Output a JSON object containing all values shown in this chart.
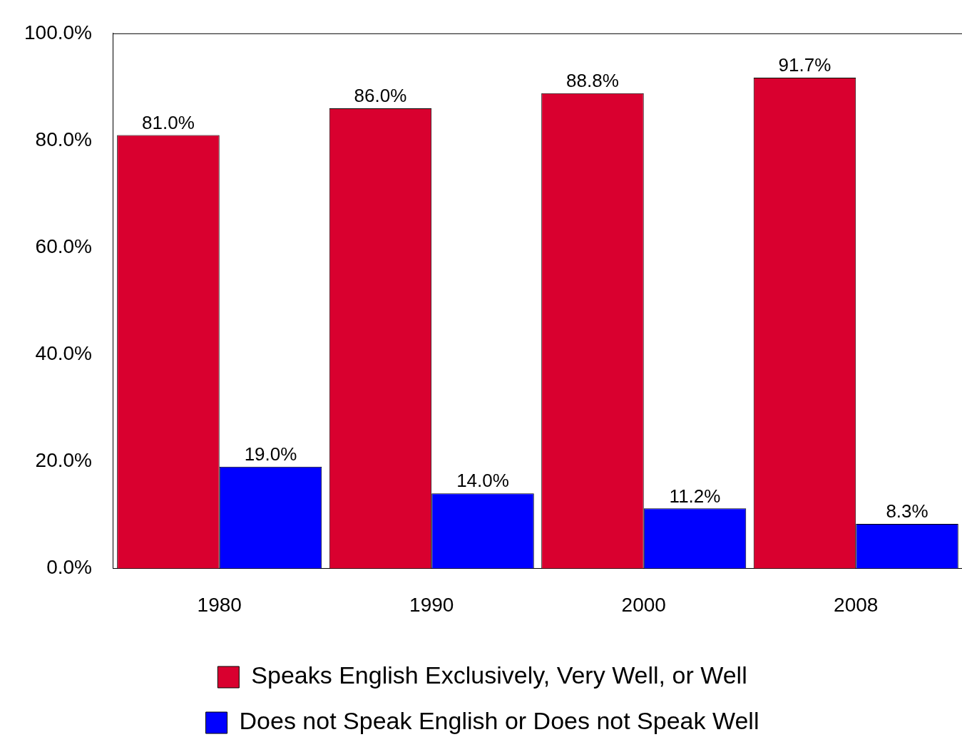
{
  "chart_data": {
    "type": "bar",
    "categories": [
      "1980",
      "1990",
      "2000",
      "2008"
    ],
    "series": [
      {
        "name": "Speaks English Exclusively, Very Well, or Well",
        "color": "#d9002f",
        "values": [
          81.0,
          86.0,
          88.8,
          91.7
        ],
        "value_labels": [
          "81.0%",
          "86.0%",
          "88.8%",
          "91.7%"
        ]
      },
      {
        "name": "Does not Speak English or Does not Speak Well",
        "color": "#0000ff",
        "values": [
          19.0,
          14.0,
          11.2,
          8.3
        ],
        "value_labels": [
          "19.0%",
          "14.0%",
          "11.2%",
          "8.3%"
        ]
      }
    ],
    "ylim": [
      0,
      100
    ],
    "yticks": [
      {
        "value": 0,
        "label": "0.0%"
      },
      {
        "value": 20,
        "label": "20.0%"
      },
      {
        "value": 40,
        "label": "40.0%"
      },
      {
        "value": 60,
        "label": "60.0%"
      },
      {
        "value": 80,
        "label": "80.0%"
      },
      {
        "value": 100,
        "label": "100.0%"
      }
    ],
    "grid": false,
    "legend": "bottom"
  }
}
